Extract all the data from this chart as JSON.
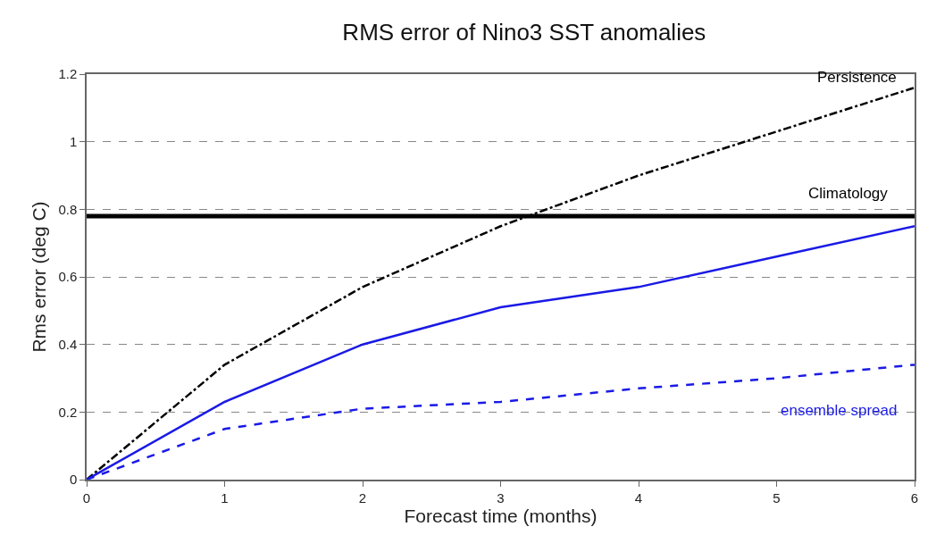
{
  "chart_data": {
    "type": "line",
    "title": "RMS error of Nino3 SST anomalies",
    "xlabel": "Forecast time (months)",
    "ylabel": "Rms error (deg C)",
    "x": [
      0,
      1,
      2,
      3,
      4,
      5,
      6
    ],
    "series": [
      {
        "name": "Persistence",
        "color": "#000000",
        "line_style": "dashdot",
        "values": [
          0,
          0.34,
          0.57,
          0.75,
          0.9,
          1.03,
          1.16
        ]
      },
      {
        "color": "#1a1ae6",
        "line_style": "solid",
        "values": [
          0,
          0.23,
          0.4,
          0.51,
          0.57,
          0.66,
          0.75
        ]
      },
      {
        "name": "ensemble spread",
        "color": "#1a1ae6",
        "line_style": "dashed",
        "values": [
          0,
          0.15,
          0.21,
          0.23,
          0.27,
          0.3,
          0.34
        ]
      }
    ],
    "ref_lines": [
      {
        "axis": "y",
        "value": 0.78,
        "label": "Climatology",
        "color": "#000000"
      }
    ],
    "xlim": [
      0,
      6
    ],
    "xticks": [
      0,
      1,
      2,
      3,
      4,
      5,
      6
    ],
    "ylim": [
      0,
      1.2
    ],
    "yticks": [
      0,
      0.2,
      0.4,
      0.6,
      0.8,
      1,
      1.2
    ],
    "grid": "y",
    "marker": "none",
    "legend": false
  }
}
